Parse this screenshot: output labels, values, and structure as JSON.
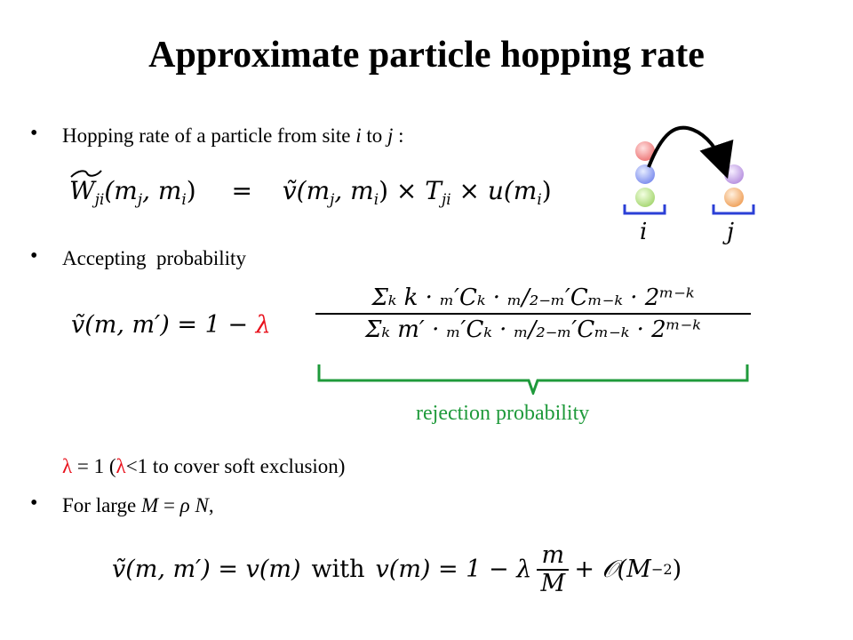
{
  "title": "Approximate particle hopping rate",
  "bullets": {
    "b1": {
      "prefix": "Hopping rate of a particle from site ",
      "i": "i",
      "mid": " to ",
      "j": "j",
      "suffix": " :"
    },
    "b2": {
      "text": "Accepting  probability"
    },
    "b3": {
      "prefix": "For large ",
      "M": "M",
      "eq": " = ",
      "rho": "ρ",
      "N": " N",
      "comma": ","
    }
  },
  "equation1": {
    "lhs": "W",
    "lhs_sub": "ji",
    "lhs_args": "(m",
    "lhs_sub2": "j",
    "lhs_args2": ", m",
    "lhs_sub3": "i",
    "lhs_close": ")",
    "eq": "=",
    "v": "ṽ(m",
    "v_sub": "j",
    "v_mid": ", m",
    "v_sub2": "i",
    "v_close": ")",
    "times1": "×",
    "T": "T",
    "T_sub": "ji",
    "times2": "×",
    "u": "u(m",
    "u_sub": "i",
    "u_close": ")"
  },
  "equation2": {
    "lhs": "ṽ(m, m′) = 1 −",
    "lambda": "λ",
    "numerator": "Σₖ k · ₘ′Cₖ · ₘ/₂₋ₘ′Cₘ₋ₖ · 2ᵐ⁻ᵏ",
    "denominator": "Σₖ m′ · ₘ′Cₖ · ₘ/₂₋ₘ′Cₘ₋ₖ · 2ᵐ⁻ᵏ"
  },
  "rejection_label": "rejection probability",
  "lambda_note": {
    "lambda1": "λ",
    "text1": " = 1 (",
    "lambda2": "λ",
    "text2": "<1 to cover soft exclusion)"
  },
  "equation3": {
    "lhs": "ṽ(m, m′) = v(m)",
    "with": "with",
    "rhs1": "v(m) = 1 − λ",
    "frac_num": "m",
    "frac_den": "M",
    "rhs2": "+ 𝒪(M",
    "rhs2_sup": "−2",
    "rhs2_close": ")"
  },
  "diagram": {
    "site_i_label": "i",
    "site_j_label": "j",
    "colors": {
      "red": "#f08a8a",
      "blue": "#8fa0f0",
      "green": "#b9e08a",
      "purple": "#c7a6e6",
      "orange": "#f2b277",
      "bracket": "#2b3fd6"
    }
  }
}
